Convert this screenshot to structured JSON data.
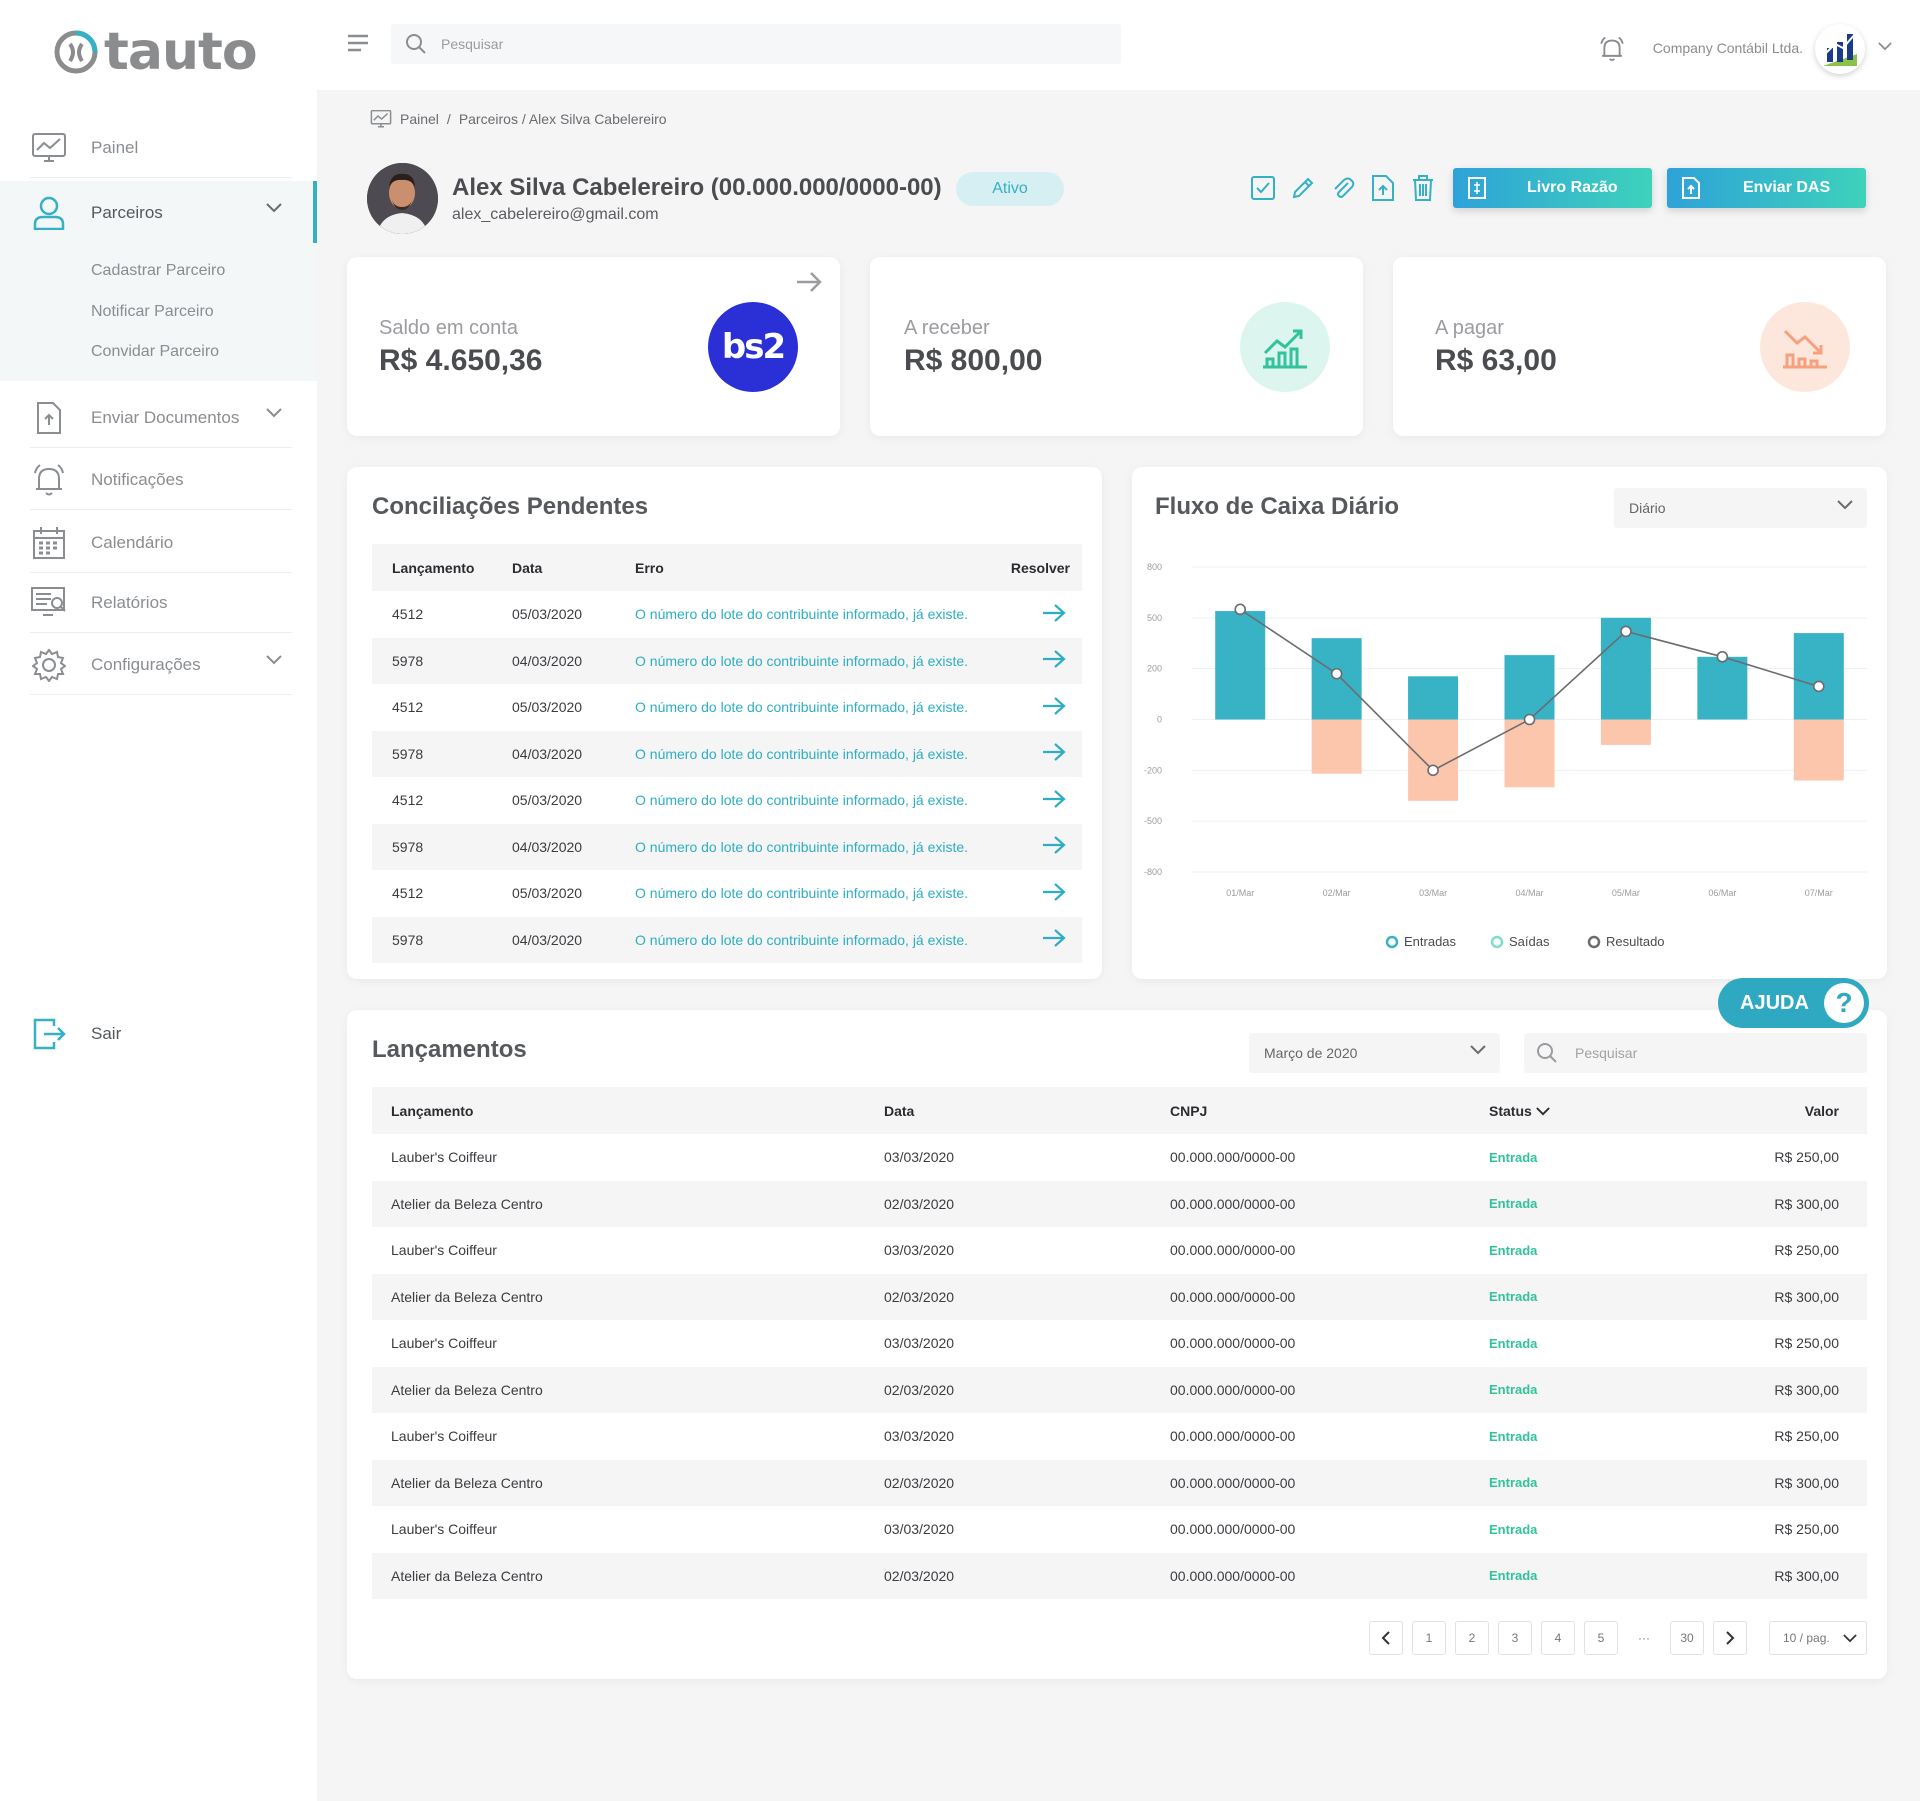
{
  "app": {
    "logo_text": "tauto"
  },
  "sidebar": {
    "items": [
      {
        "label": "Painel"
      },
      {
        "label": "Parceiros"
      },
      {
        "label": "Enviar Documentos"
      },
      {
        "label": "Notificações"
      },
      {
        "label": "Calendário"
      },
      {
        "label": "Relatórios"
      },
      {
        "label": "Configurações"
      }
    ],
    "subitems": [
      "Cadastrar Parceiro",
      "Notificar Parceiro",
      "Convidar Parceiro"
    ],
    "logout": "Sair"
  },
  "header": {
    "search_placeholder": "Pesquisar",
    "company": "Company Contábil Ltda."
  },
  "breadcrumb": {
    "root": "Painel",
    "separator": "/",
    "path": "Parceiros / Alex Silva Cabelereiro"
  },
  "profile": {
    "name": "Alex Silva Cabelereiro (00.000.000/0000-00)",
    "email": "alex_cabelereiro@gmail.com",
    "status": "Ativo"
  },
  "buttons": {
    "livro_razao": "Livro Razão",
    "enviar_das": "Enviar DAS"
  },
  "stats": [
    {
      "label": "Saldo em conta",
      "value": "R$ 4.650,36",
      "badge": "bs2"
    },
    {
      "label": "A receber",
      "value": "R$ 800,00"
    },
    {
      "label": "A pagar",
      "value": "R$ 63,00"
    }
  ],
  "conciliacoes": {
    "title": "Conciliações Pendentes",
    "columns": [
      "Lançamento",
      "Data",
      "Erro",
      "Resolver"
    ],
    "rows": [
      [
        "4512",
        "05/03/2020",
        "O número do lote do contribuinte informado, já existe."
      ],
      [
        "5978",
        "04/03/2020",
        "O número do lote do contribuinte informado, já existe."
      ],
      [
        "4512",
        "05/03/2020",
        "O número do lote do contribuinte informado, já existe."
      ],
      [
        "5978",
        "04/03/2020",
        "O número do lote do contribuinte informado, já existe."
      ],
      [
        "4512",
        "05/03/2020",
        "O número do lote do contribuinte informado, já existe."
      ],
      [
        "5978",
        "04/03/2020",
        "O número do lote do contribuinte informado, já existe."
      ],
      [
        "4512",
        "05/03/2020",
        "O número do lote do contribuinte informado, já existe."
      ],
      [
        "5978",
        "04/03/2020",
        "O número do lote do contribuinte informado, já existe."
      ]
    ]
  },
  "fluxo": {
    "title": "Fluxo de Caixa Diário",
    "period": "Diário"
  },
  "chart_data": {
    "type": "bar",
    "title": "Fluxo de Caixa Diário",
    "categories": [
      "01/Mar",
      "02/Mar",
      "03/Mar",
      "04/Mar",
      "05/Mar",
      "06/Mar",
      "07/Mar"
    ],
    "y_ticks": [
      "800",
      "500",
      "200",
      "0",
      "-200",
      "-500",
      "-800"
    ],
    "ylim": [
      -800,
      800
    ],
    "series": [
      {
        "name": "Entradas",
        "type": "bar",
        "color": "#38b2c5",
        "values": [
          540,
          380,
          170,
          280,
          500,
          270,
          410
        ]
      },
      {
        "name": "Saídas",
        "type": "bar",
        "color": "#fcc6ad",
        "values": [
          0,
          -220,
          -380,
          -300,
          -100,
          0,
          -260
        ]
      },
      {
        "name": "Resultado",
        "type": "line",
        "color": "#6a6c70",
        "values": [
          550,
          180,
          -200,
          0,
          420,
          270,
          130
        ]
      }
    ],
    "legend_position": "bottom",
    "grid": true
  },
  "lancamentos": {
    "title": "Lançamentos",
    "month_filter": "Março de 2020",
    "search_placeholder": "Pesquisar",
    "columns": [
      "Lançamento",
      "Data",
      "CNPJ",
      "Status",
      "Valor"
    ],
    "rows": [
      [
        "Lauber's Coiffeur",
        "03/03/2020",
        "00.000.000/0000-00",
        "Entrada",
        "R$ 250,00"
      ],
      [
        "Atelier da Beleza Centro",
        "02/03/2020",
        "00.000.000/0000-00",
        "Entrada",
        "R$ 300,00"
      ],
      [
        "Lauber's Coiffeur",
        "03/03/2020",
        "00.000.000/0000-00",
        "Entrada",
        "R$ 250,00"
      ],
      [
        "Atelier da Beleza Centro",
        "02/03/2020",
        "00.000.000/0000-00",
        "Entrada",
        "R$ 300,00"
      ],
      [
        "Lauber's Coiffeur",
        "03/03/2020",
        "00.000.000/0000-00",
        "Entrada",
        "R$ 250,00"
      ],
      [
        "Atelier da Beleza Centro",
        "02/03/2020",
        "00.000.000/0000-00",
        "Entrada",
        "R$ 300,00"
      ],
      [
        "Lauber's Coiffeur",
        "03/03/2020",
        "00.000.000/0000-00",
        "Entrada",
        "R$ 250,00"
      ],
      [
        "Atelier da Beleza Centro",
        "02/03/2020",
        "00.000.000/0000-00",
        "Entrada",
        "R$ 300,00"
      ],
      [
        "Lauber's Coiffeur",
        "03/03/2020",
        "00.000.000/0000-00",
        "Entrada",
        "R$ 250,00"
      ],
      [
        "Atelier da Beleza Centro",
        "02/03/2020",
        "00.000.000/0000-00",
        "Entrada",
        "R$ 300,00"
      ]
    ],
    "pagination": {
      "pages": [
        "1",
        "2",
        "3",
        "4",
        "5",
        "···",
        "30"
      ],
      "page_size": "10 / pag."
    }
  },
  "help": {
    "label": "AJUDA",
    "icon": "?"
  },
  "colors": {
    "accent": "#35b0c4",
    "entrada": "#32c39a",
    "saida": "#fcc6ad",
    "bs2": "#2a2fd6"
  }
}
